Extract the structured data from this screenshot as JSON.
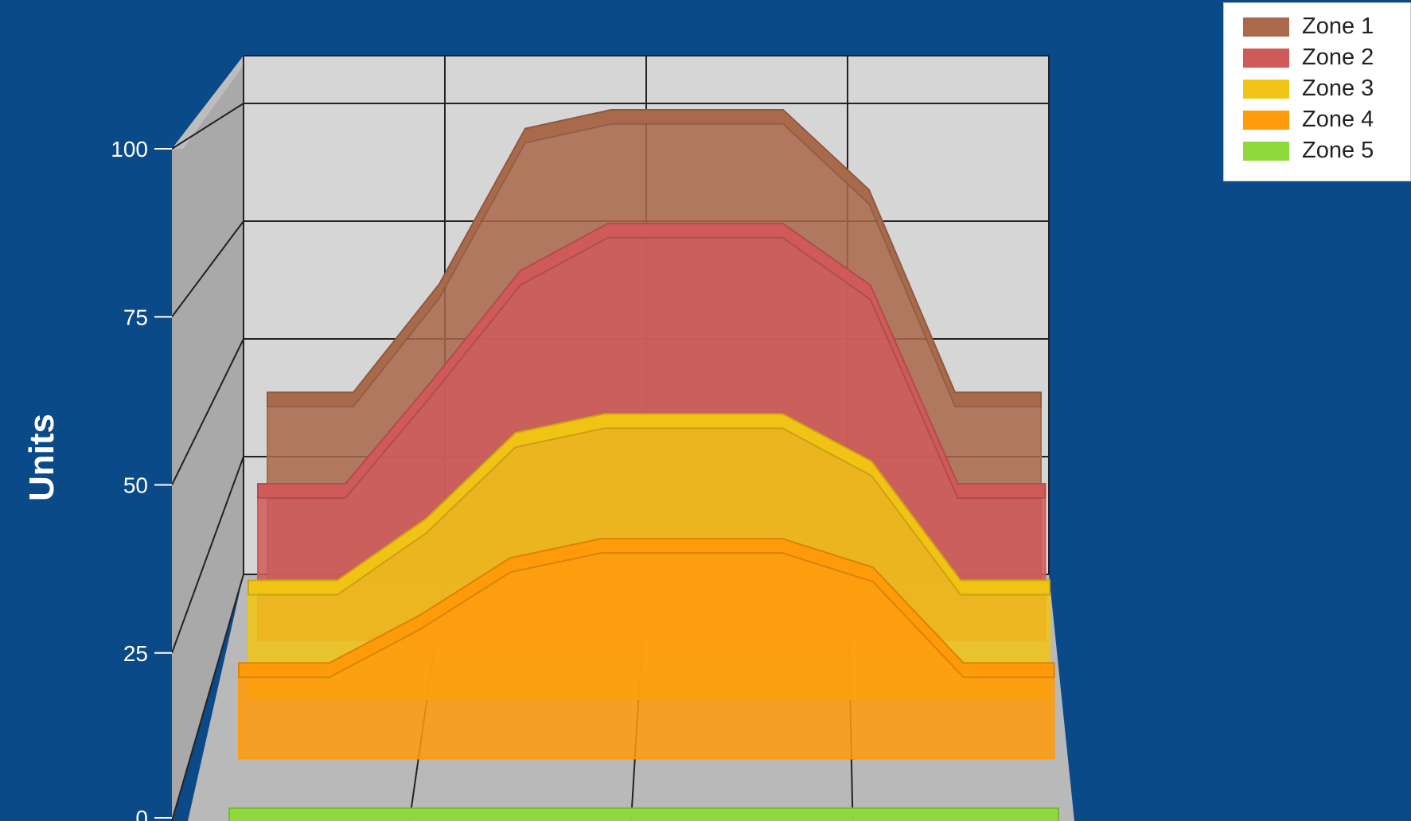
{
  "chart_data": {
    "type": "area",
    "title": "",
    "xlabel": "",
    "ylabel": "Units",
    "ylim": [
      0,
      100
    ],
    "yticks": [
      "0",
      "25",
      "50",
      "75",
      "100"
    ],
    "x": [
      0,
      0.5,
      1,
      1.5,
      2,
      2.5,
      3,
      3.5,
      4,
      4.5
    ],
    "series": [
      {
        "name": "Zone 1",
        "color": "#a9694a",
        "values": [
          40,
          40,
          63,
          96,
          100,
          100,
          100,
          83,
          40,
          40
        ]
      },
      {
        "name": "Zone 2",
        "color": "#d05a5a",
        "values": [
          33,
          33,
          55,
          78,
          88,
          88,
          88,
          75,
          33,
          33
        ]
      },
      {
        "name": "Zone 3",
        "color": "#f1c415",
        "values": [
          25,
          25,
          38,
          56,
          60,
          60,
          60,
          50,
          25,
          25
        ]
      },
      {
        "name": "Zone 4",
        "color": "#ff9a0a",
        "values": [
          20,
          20,
          30,
          42,
          46,
          46,
          46,
          40,
          20,
          20
        ]
      },
      {
        "name": "Zone 5",
        "color": "#8ed83c",
        "values": [
          2,
          2,
          2,
          2,
          2,
          2,
          2,
          2,
          2,
          2
        ]
      }
    ],
    "grid": true,
    "legend": "top-right",
    "background_color": "#0b4a88",
    "wall_color": "#d6d6d6"
  }
}
